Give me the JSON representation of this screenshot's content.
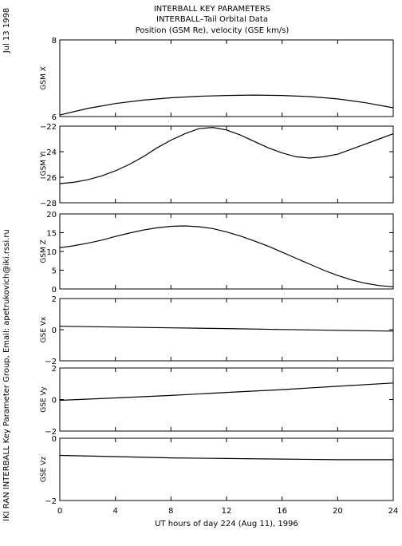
{
  "header": {
    "date": "Jul 13 1998",
    "title_lines": [
      "INTERBALL KEY PARAMETERS",
      "INTERBALL–Tail Orbital Data",
      "Position (GSM Re), velocity (GSE km/s)"
    ]
  },
  "side_credit": "IKI RAN INTERBALL Key Parameter Group, Email: apetrukovich@iki.rssi.ru",
  "chart_data": [
    {
      "type": "line",
      "ylabel": "GSM X",
      "ylim": [
        6,
        8
      ],
      "yticks": [
        6,
        8
      ],
      "x": [
        0,
        2,
        4,
        6,
        8,
        10,
        12,
        14,
        16,
        18,
        20,
        22,
        24
      ],
      "y": [
        6.04,
        6.21,
        6.34,
        6.43,
        6.49,
        6.53,
        6.55,
        6.56,
        6.55,
        6.52,
        6.46,
        6.36,
        6.23
      ]
    },
    {
      "type": "line",
      "ylabel": "GSM Y",
      "ylim": [
        -28,
        -22
      ],
      "yticks": [
        -28,
        -26,
        -24,
        -22
      ],
      "x": [
        0,
        1,
        2,
        3,
        4,
        5,
        6,
        7,
        8,
        9,
        10,
        11,
        12,
        13,
        14,
        15,
        16,
        17,
        18,
        19,
        20,
        21,
        22,
        23,
        24
      ],
      "y": [
        -26.5,
        -26.4,
        -26.2,
        -25.9,
        -25.5,
        -25.0,
        -24.4,
        -23.7,
        -23.1,
        -22.6,
        -22.2,
        -22.1,
        -22.3,
        -22.7,
        -23.2,
        -23.7,
        -24.1,
        -24.4,
        -24.5,
        -24.4,
        -24.2,
        -23.8,
        -23.4,
        -23.0,
        -22.6
      ]
    },
    {
      "type": "line",
      "ylabel": "GSM Z",
      "ylim": [
        0,
        20
      ],
      "yticks": [
        0,
        5,
        10,
        15,
        20
      ],
      "x": [
        0,
        1,
        2,
        3,
        4,
        5,
        6,
        7,
        8,
        9,
        10,
        11,
        12,
        13,
        14,
        15,
        16,
        17,
        18,
        19,
        20,
        21,
        22,
        23,
        24
      ],
      "y": [
        11.0,
        11.5,
        12.2,
        13.0,
        14.0,
        14.9,
        15.7,
        16.3,
        16.7,
        16.8,
        16.6,
        16.1,
        15.2,
        14.1,
        12.8,
        11.4,
        9.8,
        8.2,
        6.6,
        5.0,
        3.6,
        2.4,
        1.5,
        0.9,
        0.6
      ]
    },
    {
      "type": "line",
      "ylabel": "GSE Vx",
      "ylim": [
        -2,
        2
      ],
      "yticks": [
        -2,
        0,
        2
      ],
      "x": [
        0,
        4,
        8,
        12,
        16,
        20,
        24
      ],
      "y": [
        0.22,
        0.17,
        0.12,
        0.07,
        0.01,
        -0.04,
        -0.09
      ]
    },
    {
      "type": "line",
      "ylabel": "GSE Vy",
      "ylim": [
        -2,
        2
      ],
      "yticks": [
        -2,
        0,
        2
      ],
      "x": [
        0,
        4,
        8,
        12,
        16,
        20,
        24
      ],
      "y": [
        -0.05,
        0.1,
        0.26,
        0.45,
        0.63,
        0.84,
        1.05
      ]
    },
    {
      "type": "line",
      "ylabel": "GSE Vz",
      "ylim": [
        -2,
        0
      ],
      "yticks": [
        -2,
        0
      ],
      "x": [
        0,
        4,
        8,
        12,
        16,
        20,
        24
      ],
      "y": [
        -0.55,
        -0.59,
        -0.63,
        -0.65,
        -0.67,
        -0.69,
        -0.69
      ]
    }
  ],
  "x_axis": {
    "ticks": [
      0,
      4,
      8,
      12,
      16,
      20,
      24
    ],
    "xlim": [
      0,
      24
    ],
    "label": "UT hours of day 224 (Aug 11), 1996"
  },
  "colors": {
    "line": "#000000",
    "background": "#ffffff"
  }
}
